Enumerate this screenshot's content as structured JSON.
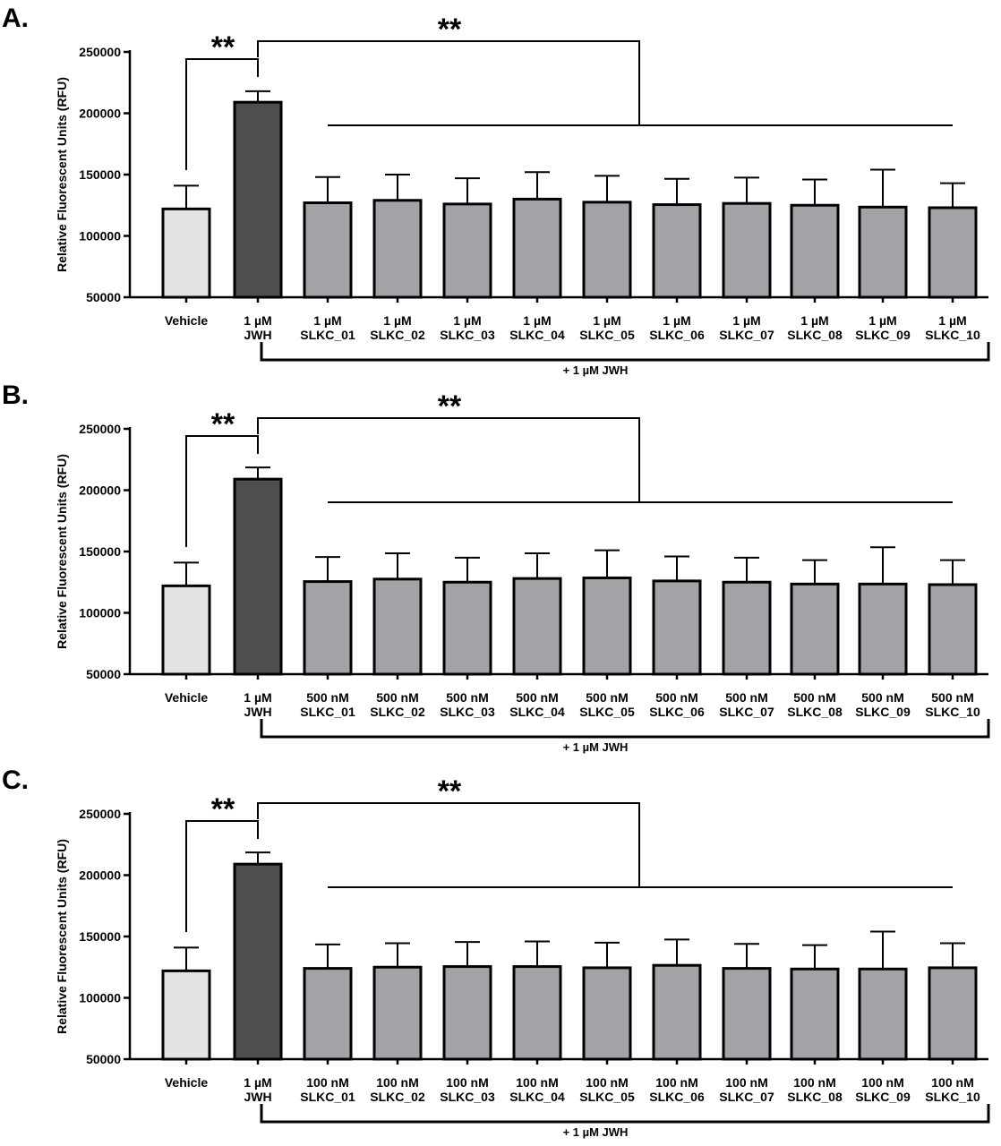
{
  "figure": {
    "panel_labels": [
      "A.",
      "B.",
      "C."
    ],
    "colors": {
      "vehicle": "#e3e3e3",
      "jwh": "#4e4e4e",
      "treatment": "#a2a3a7",
      "stroke": "#000000"
    }
  },
  "chart_data": [
    {
      "type": "bar",
      "panel": "A.",
      "ylabel": "Relative Fluorescent Units (RFU)",
      "ylim": [
        50000,
        250000
      ],
      "yticks": [
        50000,
        100000,
        150000,
        200000,
        250000
      ],
      "categories": [
        [
          "Vehicle"
        ],
        [
          "1 µM",
          "JWH"
        ],
        [
          "1 µM",
          "SLKC_01"
        ],
        [
          "1 µM",
          "SLKC_02"
        ],
        [
          "1 µM",
          "SLKC_03"
        ],
        [
          "1 µM",
          "SLKC_04"
        ],
        [
          "1 µM",
          "SLKC_05"
        ],
        [
          "1 µM",
          "SLKC_06"
        ],
        [
          "1 µM",
          "SLKC_07"
        ],
        [
          "1 µM",
          "SLKC_08"
        ],
        [
          "1 µM",
          "SLKC_09"
        ],
        [
          "1 µM",
          "SLKC_10"
        ]
      ],
      "values": [
        122000,
        209000,
        127000,
        129000,
        126000,
        130000,
        127500,
        125500,
        126500,
        125000,
        123500,
        123000
      ],
      "errors": [
        19000,
        9000,
        21000,
        21000,
        21000,
        22000,
        21500,
        21000,
        21000,
        21000,
        30500,
        20000
      ],
      "group_label": "+ 1 µM JWH",
      "significance": [
        "**",
        "**"
      ]
    },
    {
      "type": "bar",
      "panel": "B.",
      "ylabel": "Relative Fluorescent Units (RFU)",
      "ylim": [
        50000,
        250000
      ],
      "yticks": [
        50000,
        100000,
        150000,
        200000,
        250000
      ],
      "categories": [
        [
          "Vehicle"
        ],
        [
          "1 µM",
          "JWH"
        ],
        [
          "500 nM",
          "SLKC_01"
        ],
        [
          "500 nM",
          "SLKC_02"
        ],
        [
          "500 nM",
          "SLKC_03"
        ],
        [
          "500 nM",
          "SLKC_04"
        ],
        [
          "500 nM",
          "SLKC_05"
        ],
        [
          "500 nM",
          "SLKC_06"
        ],
        [
          "500 nM",
          "SLKC_07"
        ],
        [
          "500 nM",
          "SLKC_08"
        ],
        [
          "500 nM",
          "SLKC_09"
        ],
        [
          "500 nM",
          "SLKC_10"
        ]
      ],
      "values": [
        122000,
        209000,
        125500,
        127500,
        125000,
        128000,
        128500,
        126000,
        125000,
        123500,
        123500,
        123000
      ],
      "errors": [
        19000,
        9500,
        20000,
        21000,
        20000,
        20500,
        22500,
        20000,
        20000,
        19500,
        30000,
        20000
      ],
      "group_label": "+ 1 µM JWH",
      "significance": [
        "**",
        "**"
      ]
    },
    {
      "type": "bar",
      "panel": "C.",
      "ylabel": "Relative Fluorescent Units (RFU)",
      "ylim": [
        50000,
        250000
      ],
      "yticks": [
        50000,
        100000,
        150000,
        200000,
        250000
      ],
      "categories": [
        [
          "Vehicle"
        ],
        [
          "1 µM",
          "JWH"
        ],
        [
          "100 nM",
          "SLKC_01"
        ],
        [
          "100 nM",
          "SLKC_02"
        ],
        [
          "100 nM",
          "SLKC_03"
        ],
        [
          "100 nM",
          "SLKC_04"
        ],
        [
          "100 nM",
          "SLKC_05"
        ],
        [
          "100 nM",
          "SLKC_06"
        ],
        [
          "100 nM",
          "SLKC_07"
        ],
        [
          "100 nM",
          "SLKC_08"
        ],
        [
          "100 nM",
          "SLKC_09"
        ],
        [
          "100 nM",
          "SLKC_10"
        ]
      ],
      "values": [
        122000,
        209000,
        124000,
        125000,
        125500,
        125500,
        124500,
        126500,
        124000,
        123500,
        123500,
        124500
      ],
      "errors": [
        19000,
        9500,
        19500,
        19500,
        20000,
        20500,
        20500,
        21000,
        20000,
        19500,
        30500,
        20000
      ],
      "group_label": "+ 1 µM JWH",
      "significance": [
        "**",
        "**"
      ]
    }
  ]
}
